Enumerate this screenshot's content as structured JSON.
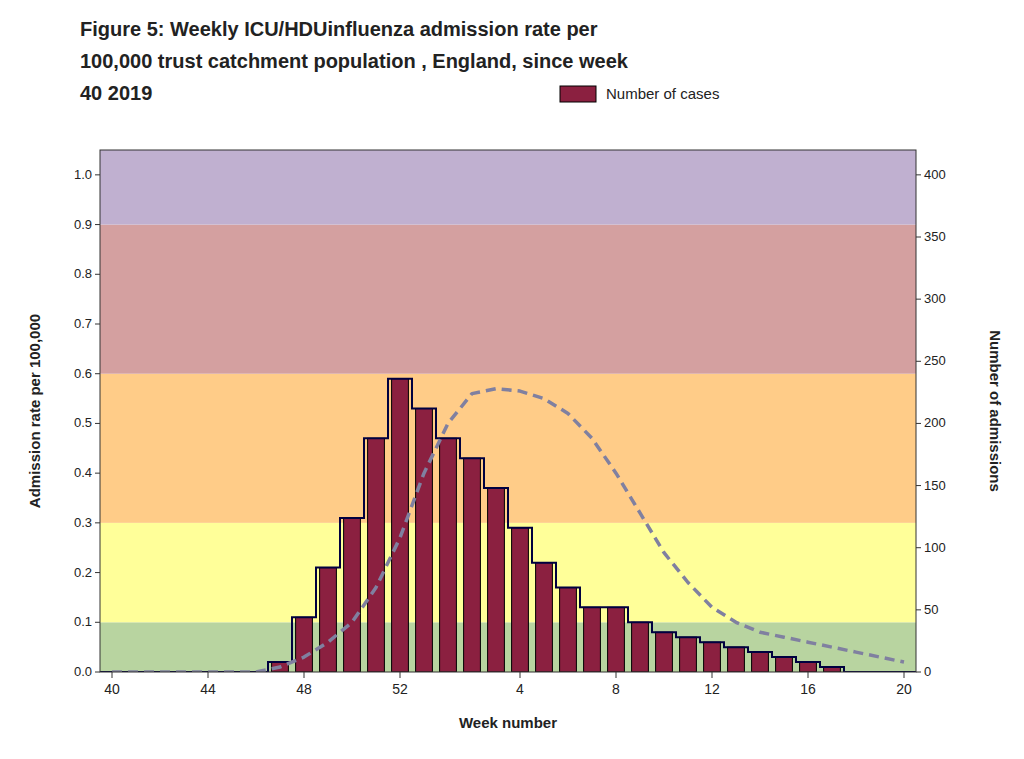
{
  "chart_data": {
    "type": "bar",
    "title": [
      "Figure 5: Weekly ICU/HDUinfluenza admission rate per",
      "100,000 trust catchment population , England, since week",
      "40 2019"
    ],
    "xlabel": "Week number",
    "ylabel": "Admission rate per 100,000",
    "y2label": "Number of admissions",
    "categories": [
      "40",
      null,
      null,
      null,
      "44",
      null,
      null,
      null,
      "48",
      null,
      null,
      null,
      "52",
      null,
      null,
      null,
      null,
      "4",
      null,
      null,
      null,
      "8",
      null,
      null,
      null,
      "12",
      null,
      null,
      null,
      "16",
      null,
      null,
      null,
      "20"
    ],
    "series": [
      {
        "name": "Number of cases",
        "type": "bar",
        "color": "#8B2040",
        "values": [
          0.0,
          0.0,
          0.0,
          0.0,
          0.0,
          0.0,
          0.0,
          0.02,
          0.11,
          0.21,
          0.31,
          0.47,
          0.59,
          0.53,
          0.47,
          0.43,
          0.37,
          0.29,
          0.22,
          0.17,
          0.13,
          0.13,
          0.1,
          0.08,
          0.07,
          0.06,
          0.05,
          0.04,
          0.03,
          0.02,
          0.01,
          0.0,
          0.0,
          0.0
        ]
      },
      {
        "type": "step",
        "color": "#000040",
        "line_style": "solid",
        "values": [
          0.0,
          0.0,
          0.0,
          0.0,
          0.0,
          0.0,
          0.0,
          0.02,
          0.11,
          0.21,
          0.31,
          0.47,
          0.59,
          0.53,
          0.47,
          0.43,
          0.37,
          0.29,
          0.22,
          0.17,
          0.13,
          0.13,
          0.1,
          0.08,
          0.07,
          0.06,
          0.05,
          0.04,
          0.03,
          0.02,
          0.01,
          0.0,
          0.0,
          0.0
        ]
      },
      {
        "type": "line",
        "color": "#8080A0",
        "line_style": "dashed",
        "values": [
          0.0,
          0.0,
          0.0,
          0.0,
          0.0,
          0.0,
          0.0,
          0.01,
          0.03,
          0.06,
          0.1,
          0.17,
          0.27,
          0.4,
          0.5,
          0.56,
          0.57,
          0.565,
          0.55,
          0.52,
          0.47,
          0.4,
          0.32,
          0.24,
          0.18,
          0.13,
          0.1,
          0.08,
          0.07,
          0.06,
          0.05,
          0.04,
          0.03,
          0.02
        ]
      }
    ],
    "bands": [
      {
        "from": 0.0,
        "to": 0.1,
        "color": "#b8d4a0"
      },
      {
        "from": 0.1,
        "to": 0.3,
        "color": "#ffff99"
      },
      {
        "from": 0.3,
        "to": 0.6,
        "color": "#ffcc88"
      },
      {
        "from": 0.6,
        "to": 0.9,
        "color": "#d4a0a0"
      },
      {
        "from": 0.9,
        "to": 1.05,
        "color": "#c0b0d0"
      }
    ],
    "ylim": [
      0.0,
      1.05
    ],
    "yticks": [
      {
        "value": 0.0,
        "label": "0.0"
      },
      0.1,
      0.2,
      0.3,
      0.4,
      0.5,
      0.6,
      0.7,
      0.8,
      0.9,
      {
        "value": 1.0,
        "label": "1.0"
      }
    ],
    "y2lim": [
      0,
      420
    ],
    "y2ticks": [
      0,
      50,
      100,
      150,
      200,
      250,
      300,
      350,
      400
    ],
    "grid": false,
    "legend": "top"
  }
}
